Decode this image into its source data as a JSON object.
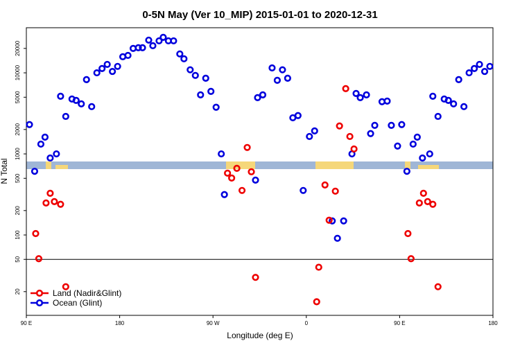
{
  "chart_data": {
    "type": "scatter",
    "title": "0-5N May (Ver 10_MIP)   2015-01-01 to 2020-12-31",
    "x_label": "Longitude (deg E)",
    "y_label": "N Total",
    "xlim": [
      90,
      540
    ],
    "ylim": [
      10.2,
      36000
    ],
    "log_y": true,
    "xticks": [
      {
        "value": 90,
        "label": "90 E"
      },
      {
        "value": 180,
        "label": "180"
      },
      {
        "value": 270,
        "label": "90 W"
      },
      {
        "value": 360,
        "label": "0"
      },
      {
        "value": 450,
        "label": "90 E"
      },
      {
        "value": 540,
        "label": "180"
      }
    ],
    "yticks": [
      20,
      50,
      100,
      200,
      500,
      1000,
      2000,
      5000,
      10000,
      20000
    ],
    "hline": 50,
    "legend": "bottom-left",
    "series": [
      {
        "name": "Land (Nadir&Glint)",
        "color": "#ee0000",
        "x": [
          99,
          102,
          109,
          113,
          117,
          123,
          128,
          284,
          288,
          293,
          298,
          303,
          307,
          311,
          370,
          372,
          378,
          382,
          388,
          392,
          398,
          402,
          406,
          458,
          461,
          469,
          473,
          477,
          482,
          487
        ],
        "values": [
          104,
          51,
          248,
          327,
          258,
          239,
          23,
          579,
          504,
          664,
          354,
          1200,
          602,
          30,
          15,
          40,
          414,
          152,
          347,
          2210,
          6380,
          1640,
          1150,
          104,
          51,
          248,
          327,
          258,
          239,
          23
        ]
      },
      {
        "name": "Ocean (Glint)",
        "color": "#0000dd",
        "x": [
          93,
          98,
          104,
          108,
          113,
          119,
          123,
          128,
          134,
          138,
          143,
          148,
          153,
          158,
          163,
          168,
          173,
          178,
          183,
          188,
          193,
          198,
          202,
          208,
          212,
          218,
          222,
          227,
          232,
          238,
          242,
          248,
          253,
          258,
          263,
          268,
          273,
          278,
          281,
          311,
          313,
          318,
          327,
          332,
          337,
          342,
          347,
          352,
          357,
          363,
          368,
          385,
          390,
          396,
          404,
          408,
          412,
          418,
          422,
          426,
          433,
          438,
          442,
          448,
          452,
          457,
          463,
          467,
          472,
          479,
          482,
          487,
          493,
          497,
          502,
          507,
          512,
          517,
          522,
          527,
          532,
          537
        ],
        "values": [
          2300,
          610,
          1320,
          1610,
          890,
          1000,
          5140,
          2900,
          4750,
          4570,
          4140,
          8240,
          3830,
          10000,
          11300,
          12700,
          10400,
          12000,
          15800,
          16400,
          20000,
          20400,
          20400,
          25300,
          21600,
          24800,
          27400,
          24800,
          24800,
          17100,
          14900,
          10900,
          9290,
          5350,
          8580,
          5900,
          3760,
          1000,
          315,
          475,
          4940,
          5350,
          11500,
          8090,
          10900,
          8580,
          2790,
          2970,
          354,
          1640,
          1920,
          149,
          91,
          149,
          1000,
          5560,
          4940,
          5350,
          1780,
          2250,
          4400,
          4480,
          2250,
          1250,
          2300,
          610,
          1320,
          1610,
          890,
          1000,
          5140,
          2900,
          4750,
          4570,
          4140,
          8240,
          3830,
          10000,
          11300,
          12700,
          10400,
          12000
        ]
      }
    ]
  }
}
